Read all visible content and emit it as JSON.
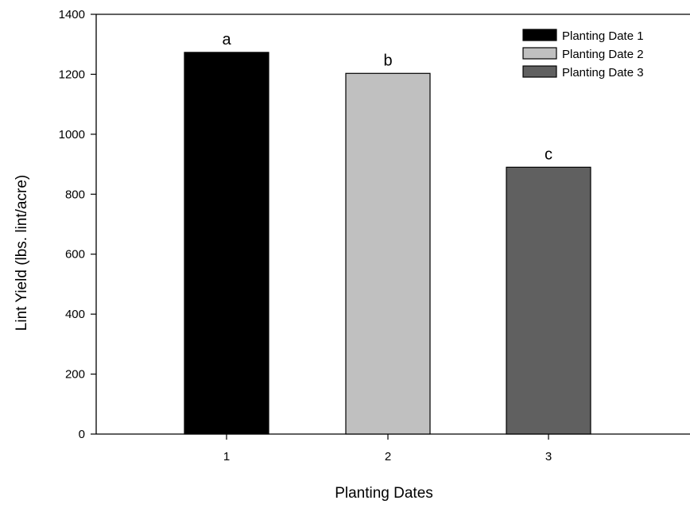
{
  "chart_data": {
    "type": "bar",
    "title": "",
    "xlabel": "Planting Dates",
    "ylabel": "Lint Yield (lbs. lint/acre)",
    "categories": [
      "1",
      "2",
      "3"
    ],
    "series": [
      {
        "name": "Planting Date 1",
        "category": "1",
        "value": 1273,
        "color": "#000000",
        "label": "a"
      },
      {
        "name": "Planting Date 2",
        "category": "2",
        "value": 1203,
        "color": "#c0c0c0",
        "label": "b"
      },
      {
        "name": "Planting Date 3",
        "category": "3",
        "value": 890,
        "color": "#606060",
        "label": "c"
      }
    ],
    "ylim": [
      0,
      1400
    ],
    "yticks": [
      "0",
      "200",
      "400",
      "600",
      "800",
      "1000",
      "1200",
      "1400"
    ],
    "grid": false,
    "legend_position": "top-right"
  }
}
